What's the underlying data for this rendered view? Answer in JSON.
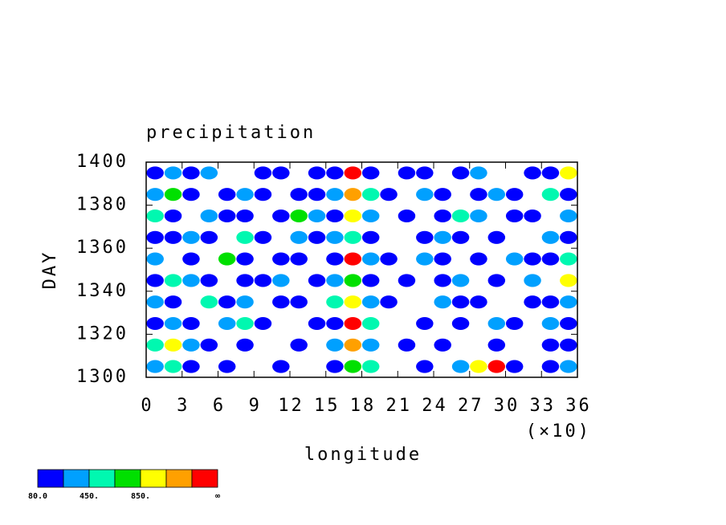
{
  "chart_data": {
    "type": "contour",
    "title": "precipitation",
    "xlabel": "longitude",
    "ylabel": "DAY",
    "x_multiplier_label": "(×10)",
    "xlim": [
      0,
      36
    ],
    "xticks": [
      0,
      3,
      6,
      9,
      12,
      15,
      18,
      21,
      24,
      27,
      30,
      33,
      36
    ],
    "ylim": [
      1300,
      1400
    ],
    "yticks": [
      1300,
      1320,
      1340,
      1360,
      1380,
      1400
    ],
    "x": [
      0.75,
      2.25,
      3.75,
      5.25,
      6.75,
      8.25,
      9.75,
      11.25,
      12.75,
      14.25,
      15.75,
      17.25,
      18.75,
      20.25,
      21.75,
      23.25,
      24.75,
      26.25,
      27.75,
      29.25,
      30.75,
      32.25,
      33.75,
      35.25
    ],
    "y": [
      1305,
      1315,
      1325,
      1335,
      1345,
      1355,
      1365,
      1375,
      1385,
      1395
    ],
    "z": [
      [
        300,
        500,
        100,
        0,
        100,
        0,
        0,
        100,
        0,
        0,
        100,
        700,
        500,
        0,
        0,
        100,
        0,
        300,
        900,
        1300,
        100,
        0,
        100,
        300
      ],
      [
        500,
        900,
        300,
        100,
        0,
        100,
        0,
        0,
        100,
        0,
        300,
        1100,
        300,
        0,
        100,
        0,
        100,
        0,
        0,
        100,
        0,
        0,
        100,
        100
      ],
      [
        100,
        300,
        100,
        0,
        300,
        500,
        100,
        0,
        0,
        100,
        100,
        1300,
        500,
        0,
        0,
        100,
        0,
        100,
        0,
        300,
        100,
        0,
        300,
        100
      ],
      [
        300,
        100,
        0,
        500,
        100,
        300,
        0,
        100,
        100,
        0,
        500,
        900,
        300,
        100,
        0,
        0,
        300,
        100,
        100,
        0,
        0,
        100,
        100,
        300
      ],
      [
        100,
        500,
        300,
        100,
        0,
        100,
        100,
        300,
        0,
        100,
        300,
        700,
        100,
        0,
        100,
        0,
        100,
        300,
        0,
        100,
        0,
        300,
        0,
        900
      ],
      [
        300,
        0,
        100,
        0,
        700,
        100,
        0,
        100,
        100,
        0,
        100,
        1300,
        300,
        100,
        0,
        300,
        100,
        0,
        100,
        0,
        300,
        100,
        100,
        500
      ],
      [
        100,
        100,
        300,
        100,
        0,
        500,
        100,
        0,
        300,
        100,
        300,
        500,
        100,
        0,
        0,
        100,
        300,
        100,
        0,
        100,
        0,
        0,
        300,
        100
      ],
      [
        500,
        100,
        0,
        300,
        100,
        100,
        0,
        100,
        700,
        300,
        100,
        900,
        300,
        0,
        100,
        0,
        100,
        500,
        300,
        0,
        100,
        100,
        0,
        300
      ],
      [
        300,
        700,
        100,
        0,
        100,
        300,
        100,
        0,
        100,
        100,
        300,
        1100,
        500,
        100,
        0,
        300,
        100,
        0,
        100,
        300,
        100,
        0,
        500,
        100
      ],
      [
        100,
        300,
        100,
        300,
        0,
        0,
        100,
        100,
        0,
        100,
        100,
        1300,
        100,
        0,
        100,
        100,
        0,
        100,
        300,
        0,
        0,
        100,
        100,
        900
      ]
    ],
    "levels": [
      80,
      250,
      450,
      650,
      850,
      1050,
      1250
    ],
    "colors": [
      "#0000ff",
      "#00a0ff",
      "#00f8b0",
      "#00e000",
      "#ffff00",
      "#ffa000",
      "#ff0000"
    ],
    "colorbar_ticks": [
      {
        "value": 80,
        "label": "80.0"
      },
      {
        "value": 450,
        "label": "450."
      },
      {
        "value": 850,
        "label": "850."
      }
    ],
    "colorbar_end_label": "∞"
  }
}
